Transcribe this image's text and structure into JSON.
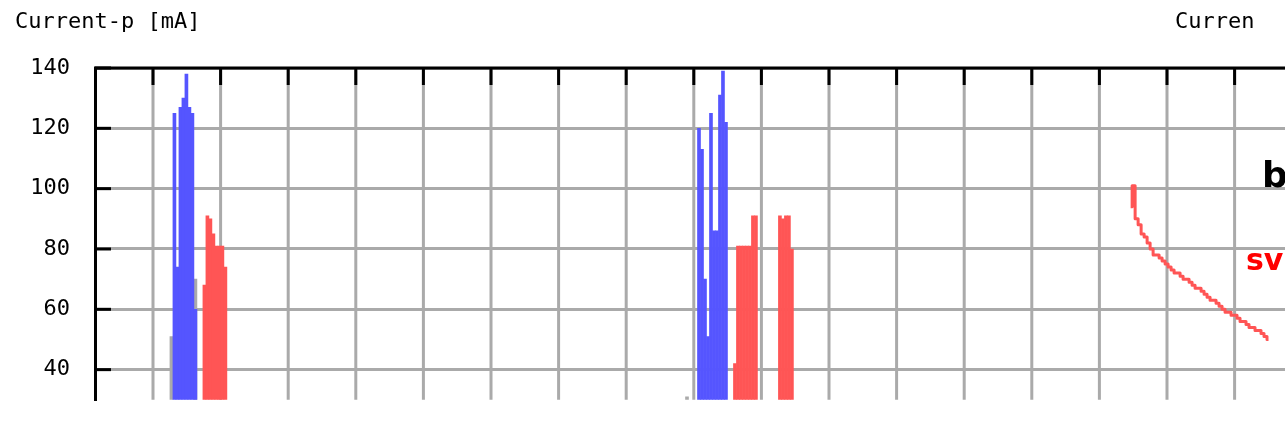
{
  "chart_data": {
    "type": "bar",
    "ylabel": "Current-p [mA]",
    "annotations": [
      "Curren",
      "b",
      "sv"
    ],
    "categories": [
      null,
      null,
      null,
      null,
      null,
      null,
      null,
      null,
      null,
      null,
      null,
      null,
      null,
      null,
      null,
      null,
      null,
      null,
      null,
      null,
      null,
      null,
      null,
      null,
      null,
      null,
      null,
      null,
      null,
      null,
      null,
      null,
      null,
      null,
      null,
      null,
      null,
      null,
      null,
      null,
      null,
      null,
      null,
      null,
      null,
      null,
      null,
      null,
      null,
      null,
      null,
      null,
      null,
      null,
      null,
      null,
      null,
      null,
      null,
      null,
      null,
      null,
      null,
      null,
      null,
      null,
      null,
      null,
      null,
      null,
      null,
      null,
      null,
      null,
      null,
      null,
      null,
      null,
      null,
      null,
      null,
      null,
      null,
      null,
      null,
      null,
      null,
      null,
      null,
      null,
      null,
      null,
      null,
      null,
      null,
      null,
      null,
      null,
      null,
      null,
      null,
      null,
      null,
      null,
      null,
      null,
      null,
      null,
      null,
      null,
      null,
      null,
      null,
      null,
      null,
      null,
      null,
      null,
      null,
      null,
      null,
      null,
      null,
      null,
      null,
      null,
      null,
      null,
      null,
      null,
      null,
      null,
      null,
      null,
      null,
      null,
      null,
      null,
      null,
      null,
      null,
      null,
      null,
      null,
      null,
      null,
      null,
      null,
      null,
      null,
      null,
      null,
      null,
      null,
      null,
      null,
      null,
      null,
      null,
      null,
      null,
      null,
      null,
      null,
      null,
      null,
      null,
      null,
      null,
      null,
      null,
      null,
      null,
      null,
      null,
      null,
      null,
      null,
      null,
      null,
      null,
      null,
      null,
      null,
      null,
      null,
      null,
      null,
      null,
      null,
      null,
      null,
      null,
      null,
      null,
      null,
      null,
      null,
      null,
      null,
      null,
      null,
      null,
      null,
      null,
      null,
      null,
      null,
      null,
      null,
      null,
      null,
      null,
      null,
      null,
      null,
      null,
      null,
      null,
      null,
      null,
      null,
      null,
      null,
      null,
      null,
      null,
      null,
      null,
      null,
      null,
      null,
      null,
      null,
      null,
      null,
      null,
      null,
      null,
      null,
      null,
      null,
      null,
      null,
      null,
      null,
      null,
      null,
      null,
      null,
      null,
      null,
      null,
      null,
      null,
      null,
      null,
      null,
      null,
      null,
      null,
      null,
      null,
      null,
      null,
      null,
      null,
      null,
      null,
      null,
      null,
      null,
      null,
      null,
      null,
      null,
      null,
      null,
      null,
      null,
      null,
      null,
      null,
      null,
      null,
      null,
      null,
      null,
      null,
      null,
      null,
      null,
      null,
      null,
      null,
      null,
      null,
      null,
      null,
      null,
      null,
      null,
      null,
      null,
      null,
      null,
      null,
      null,
      null,
      null,
      null,
      null,
      null,
      null,
      null,
      null,
      null,
      null,
      null,
      null,
      null,
      null,
      null,
      null,
      null,
      null,
      null,
      null,
      null,
      null,
      null,
      null,
      null,
      null,
      null,
      null,
      null,
      null,
      null,
      null,
      null,
      null,
      null,
      null,
      null,
      null,
      null,
      null,
      null,
      null,
      null,
      null,
      null,
      null,
      null,
      null,
      null,
      null,
      null,
      null,
      null,
      null,
      null,
      null,
      null,
      null,
      null,
      null,
      null,
      null,
      null,
      null,
      null,
      null,
      null,
      null,
      null,
      null,
      null,
      null,
      null,
      null,
      null,
      null,
      null,
      null,
      null,
      null,
      null,
      null,
      null,
      null,
      null,
      null,
      null,
      null,
      null
    ],
    "series": [
      {
        "color": "#aaaaaa",
        "values": [
          null,
          null,
          null,
          null,
          null,
          null,
          null,
          null,
          null,
          null,
          null,
          null,
          null,
          null,
          null,
          null,
          null,
          null,
          null,
          null,
          null,
          null,
          null,
          null,
          null,
          51,
          null,
          null,
          null,
          null,
          null,
          null,
          null,
          70,
          null,
          null,
          null,
          null,
          null,
          null,
          null,
          null,
          null,
          null,
          null,
          null,
          null,
          null,
          null,
          null,
          null,
          null,
          null,
          null,
          null,
          null,
          null,
          null,
          null,
          null,
          null,
          null,
          null,
          null,
          null,
          null,
          null,
          null,
          null,
          null,
          null,
          null,
          null,
          null,
          null,
          null,
          null,
          null,
          null,
          null,
          null,
          null,
          null,
          null,
          null,
          null,
          null,
          null,
          null,
          null,
          null,
          null,
          null,
          null,
          null,
          null,
          null,
          null,
          null,
          null,
          null,
          null,
          null,
          null,
          null,
          null,
          null,
          null,
          null,
          null,
          null,
          null,
          null,
          null,
          null,
          null,
          null,
          null,
          null,
          null,
          null,
          null,
          null,
          null,
          null,
          null,
          null,
          null,
          null,
          null,
          null,
          null,
          null,
          null,
          null,
          null,
          null,
          null,
          null,
          null,
          null,
          null,
          null,
          null,
          null,
          null,
          null,
          null,
          null,
          null,
          null,
          null,
          null,
          null,
          null,
          null,
          null,
          null,
          null,
          null,
          null,
          null,
          null,
          null,
          null,
          null,
          null,
          null,
          null,
          null,
          null,
          null,
          null,
          null,
          null,
          null,
          null,
          null,
          null,
          null,
          null,
          null,
          null,
          null,
          null,
          null,
          null,
          null,
          null,
          null,
          null,
          null,
          null,
          null,
          null,
          null,
          null,
          31,
          null,
          null,
          null,
          null,
          null,
          null,
          null,
          null,
          null,
          null,
          null,
          null,
          null,
          null,
          null,
          null,
          null,
          null,
          null,
          null,
          null,
          null,
          null,
          null,
          null,
          null,
          null,
          null,
          null,
          null,
          null,
          null,
          null,
          null,
          null,
          null,
          null,
          null,
          null,
          null,
          null,
          null,
          null,
          null,
          null,
          null,
          null,
          null,
          null,
          null,
          null,
          null,
          null,
          null,
          null,
          null,
          null,
          null,
          null,
          null,
          null,
          null,
          null,
          null,
          null,
          null,
          null,
          null,
          null,
          null,
          null,
          null,
          null,
          null,
          null,
          null,
          null,
          null,
          null,
          null,
          null,
          null,
          null,
          null,
          null,
          null,
          null,
          null,
          null,
          null,
          null,
          null,
          null,
          null,
          null,
          null,
          null,
          null,
          null,
          null,
          null,
          null,
          null,
          null,
          null,
          null,
          null,
          null,
          null,
          null,
          null,
          null,
          null,
          null,
          null,
          null,
          null,
          null,
          null,
          null,
          null,
          null,
          null,
          null,
          null,
          null,
          null,
          null,
          null,
          null,
          null,
          null,
          null,
          null,
          null,
          null,
          null,
          null,
          null,
          null,
          null,
          null,
          null,
          null,
          null,
          null,
          null,
          null,
          null,
          null,
          null,
          null,
          null,
          null,
          null,
          null,
          null,
          null,
          null,
          null,
          null,
          null,
          null,
          null,
          null,
          null,
          null,
          null,
          null,
          null,
          null,
          null,
          null,
          null,
          null,
          null,
          null,
          null,
          null,
          null,
          null,
          null,
          null,
          null,
          null,
          null,
          null,
          null,
          null,
          null,
          null,
          null,
          null,
          null,
          null,
          null,
          null,
          null,
          null
        ]
      },
      {
        "color": "#5555ff",
        "values": [
          null,
          null,
          null,
          null,
          null,
          null,
          null,
          null,
          null,
          null,
          null,
          null,
          null,
          null,
          null,
          null,
          null,
          null,
          null,
          null,
          null,
          null,
          null,
          null,
          null,
          null,
          125,
          74,
          127,
          130,
          138,
          127,
          125,
          60,
          null,
          null,
          null,
          null,
          null,
          null,
          null,
          null,
          null,
          null,
          null,
          null,
          null,
          null,
          null,
          null,
          null,
          null,
          null,
          null,
          null,
          null,
          null,
          null,
          null,
          null,
          null,
          null,
          null,
          null,
          null,
          null,
          null,
          null,
          null,
          null,
          null,
          null,
          null,
          null,
          null,
          null,
          null,
          null,
          null,
          null,
          null,
          null,
          null,
          null,
          null,
          null,
          null,
          null,
          null,
          null,
          null,
          null,
          null,
          null,
          null,
          null,
          null,
          null,
          null,
          null,
          null,
          null,
          null,
          null,
          null,
          null,
          null,
          null,
          null,
          null,
          null,
          null,
          null,
          null,
          null,
          null,
          null,
          null,
          null,
          null,
          null,
          null,
          null,
          null,
          null,
          null,
          null,
          null,
          null,
          null,
          null,
          null,
          null,
          null,
          null,
          null,
          null,
          null,
          null,
          null,
          null,
          null,
          null,
          null,
          null,
          null,
          null,
          null,
          null,
          null,
          null,
          null,
          null,
          null,
          null,
          null,
          null,
          null,
          null,
          null,
          null,
          null,
          null,
          null,
          null,
          null,
          null,
          null,
          null,
          null,
          null,
          null,
          null,
          null,
          null,
          null,
          null,
          null,
          null,
          null,
          null,
          null,
          null,
          null,
          null,
          null,
          null,
          null,
          null,
          null,
          null,
          null,
          null,
          null,
          null,
          null,
          null,
          null,
          null,
          null,
          null,
          120,
          113,
          70,
          51,
          125,
          86,
          86,
          131,
          139,
          122,
          null,
          null,
          null,
          null,
          null,
          null,
          null,
          null,
          null,
          null,
          null,
          null,
          null,
          null,
          null,
          null,
          null,
          null,
          null,
          null,
          null,
          null,
          null,
          null,
          null,
          null,
          null,
          null,
          null,
          null,
          null,
          null,
          null,
          null,
          null,
          null,
          null,
          null,
          null,
          null,
          null,
          null,
          null,
          null,
          null,
          null,
          null,
          null,
          null,
          null,
          null,
          null,
          null,
          null,
          null,
          null,
          null,
          null,
          null,
          null,
          null,
          null,
          null,
          null,
          null,
          null,
          null,
          null,
          null,
          null,
          null,
          null,
          null,
          null,
          null,
          null,
          null,
          null,
          null,
          null,
          null,
          null,
          null,
          null,
          null,
          null,
          null,
          null,
          null,
          null,
          null,
          null,
          null,
          null,
          null,
          null,
          null,
          null,
          null,
          null,
          null,
          null,
          null,
          null,
          null,
          null,
          null,
          null,
          null,
          null,
          null,
          null,
          null,
          null,
          null,
          null,
          null,
          null,
          null,
          null,
          null,
          null,
          null,
          null,
          null,
          null,
          null,
          null,
          null,
          null,
          null,
          null,
          null,
          null,
          null,
          null,
          null,
          null,
          null,
          null,
          null,
          null,
          null,
          null,
          null,
          null,
          null,
          null,
          null,
          null,
          null,
          null,
          null,
          null,
          null,
          null,
          null,
          null,
          null,
          null,
          null,
          null,
          null,
          null,
          null,
          null,
          null,
          null,
          null,
          null,
          null,
          null,
          null,
          null,
          null,
          null,
          null,
          null,
          null,
          null,
          null,
          null,
          null,
          null,
          null,
          null
        ]
      },
      {
        "color": "#ff5555",
        "values": [
          null,
          null,
          null,
          null,
          null,
          null,
          null,
          null,
          null,
          null,
          null,
          null,
          null,
          null,
          null,
          null,
          null,
          null,
          null,
          null,
          null,
          null,
          null,
          null,
          null,
          null,
          null,
          null,
          null,
          null,
          null,
          null,
          null,
          null,
          null,
          null,
          68,
          91,
          90,
          85,
          81,
          81,
          81,
          74,
          null,
          null,
          null,
          null,
          null,
          null,
          null,
          null,
          null,
          null,
          null,
          null,
          null,
          null,
          null,
          null,
          null,
          null,
          null,
          null,
          null,
          null,
          null,
          null,
          null,
          null,
          null,
          null,
          null,
          null,
          null,
          null,
          null,
          null,
          null,
          null,
          null,
          null,
          null,
          null,
          null,
          null,
          null,
          null,
          null,
          null,
          null,
          null,
          null,
          null,
          null,
          null,
          null,
          null,
          null,
          null,
          null,
          null,
          null,
          null,
          null,
          null,
          null,
          null,
          null,
          null,
          null,
          null,
          null,
          null,
          null,
          null,
          null,
          null,
          null,
          null,
          null,
          null,
          null,
          null,
          null,
          null,
          null,
          null,
          null,
          null,
          null,
          null,
          null,
          null,
          null,
          null,
          null,
          null,
          null,
          null,
          null,
          null,
          null,
          null,
          null,
          null,
          null,
          null,
          null,
          null,
          null,
          null,
          null,
          null,
          null,
          null,
          null,
          null,
          null,
          null,
          null,
          null,
          null,
          null,
          null,
          null,
          null,
          null,
          null,
          null,
          null,
          null,
          null,
          null,
          null,
          null,
          null,
          null,
          null,
          null,
          null,
          null,
          null,
          null,
          null,
          null,
          null,
          null,
          null,
          null,
          null,
          null,
          null,
          null,
          null,
          null,
          null,
          null,
          null,
          null,
          null,
          null,
          null,
          null,
          null,
          null,
          null,
          null,
          null,
          null,
          null,
          null,
          null,
          42,
          81,
          81,
          81,
          81,
          81,
          91,
          91,
          null,
          null,
          null,
          null,
          null,
          null,
          null,
          91,
          90,
          91,
          91,
          80,
          null,
          null,
          null,
          null,
          null,
          null,
          null,
          null,
          null,
          null,
          null,
          null,
          null,
          null,
          null,
          null,
          null,
          null,
          null,
          null,
          null,
          null,
          null,
          null,
          null,
          null,
          null,
          null,
          null,
          null,
          null,
          null,
          null,
          null,
          null,
          null,
          null,
          null,
          null,
          null,
          null,
          null,
          null,
          null,
          null,
          null,
          null,
          null,
          null,
          null,
          null,
          null,
          null,
          null,
          null,
          null,
          null,
          null,
          null,
          null,
          null,
          null,
          null,
          null,
          null,
          null,
          null,
          null,
          null,
          null,
          null,
          null,
          null,
          null,
          null,
          null,
          null,
          null,
          null,
          null,
          null,
          null,
          null,
          null,
          null,
          null,
          null,
          null,
          null,
          null,
          null,
          null,
          null,
          null,
          null,
          null,
          null,
          null,
          null,
          null,
          null,
          null,
          null,
          null,
          null,
          null,
          null,
          null,
          null,
          null,
          null,
          null,
          null,
          null,
          null,
          null,
          null,
          null,
          null,
          null,
          null,
          null,
          null,
          null,
          null,
          null,
          null,
          null,
          null,
          null,
          null,
          null,
          null,
          null,
          null,
          null,
          null,
          null,
          null,
          null,
          null,
          null,
          null,
          null,
          null,
          null,
          null,
          null,
          null,
          null,
          null,
          null,
          null,
          null,
          null,
          null,
          null,
          null,
          null,
          null,
          null,
          null,
          null,
          null
        ]
      },
      {
        "type": "step",
        "color": "#ff5555",
        "values": [
          null,
          null,
          null,
          null,
          null,
          null,
          null,
          null,
          null,
          null,
          null,
          null,
          null,
          null,
          null,
          null,
          null,
          null,
          null,
          null,
          null,
          null,
          null,
          null,
          null,
          null,
          null,
          null,
          null,
          null,
          null,
          null,
          null,
          null,
          null,
          null,
          null,
          null,
          null,
          null,
          null,
          null,
          null,
          null,
          null,
          null,
          null,
          null,
          null,
          null,
          null,
          null,
          null,
          null,
          null,
          null,
          null,
          null,
          null,
          null,
          null,
          null,
          null,
          null,
          null,
          null,
          null,
          null,
          null,
          null,
          null,
          null,
          null,
          null,
          null,
          null,
          null,
          null,
          null,
          null,
          null,
          null,
          null,
          null,
          null,
          null,
          null,
          null,
          null,
          null,
          null,
          null,
          null,
          null,
          null,
          null,
          null,
          null,
          null,
          null,
          null,
          null,
          null,
          null,
          null,
          null,
          null,
          null,
          null,
          null,
          null,
          null,
          null,
          null,
          null,
          null,
          null,
          null,
          null,
          null,
          null,
          null,
          null,
          null,
          null,
          null,
          null,
          null,
          null,
          null,
          null,
          null,
          null,
          null,
          null,
          null,
          null,
          null,
          null,
          null,
          null,
          null,
          null,
          null,
          null,
          null,
          null,
          null,
          null,
          null,
          null,
          null,
          null,
          null,
          null,
          null,
          null,
          null,
          null,
          null,
          null,
          null,
          null,
          null,
          null,
          null,
          null,
          null,
          null,
          null,
          null,
          null,
          null,
          null,
          null,
          null,
          null,
          null,
          null,
          null,
          null,
          null,
          null,
          null,
          null,
          null,
          null,
          null,
          null,
          null,
          null,
          null,
          null,
          null,
          null,
          null,
          null,
          null,
          null,
          null,
          null,
          null,
          null,
          null,
          null,
          null,
          null,
          null,
          null,
          null,
          null,
          null,
          null,
          null,
          null,
          null,
          null,
          null,
          null,
          null,
          null,
          null,
          null,
          null,
          null,
          null,
          null,
          null,
          null,
          null,
          null,
          null,
          null,
          null,
          null,
          null,
          null,
          null,
          null,
          null,
          null,
          null,
          null,
          null,
          null,
          null,
          null,
          null,
          null,
          null,
          null,
          null,
          null,
          null,
          null,
          null,
          null,
          null,
          null,
          null,
          null,
          null,
          null,
          null,
          null,
          null,
          null,
          null,
          null,
          null,
          null,
          null,
          null,
          null,
          null,
          null,
          null,
          null,
          null,
          null,
          null,
          null,
          null,
          null,
          null,
          null,
          null,
          null,
          null,
          null,
          null,
          null,
          null,
          null,
          null,
          null,
          null,
          null,
          null,
          null,
          null,
          null,
          null,
          null,
          null,
          null,
          null,
          null,
          null,
          null,
          null,
          null,
          null,
          null,
          null,
          null,
          null,
          null,
          null,
          null,
          null,
          null,
          null,
          null,
          null,
          null,
          null,
          null,
          null,
          null,
          null,
          null,
          null,
          null,
          null,
          null,
          null,
          null,
          null,
          null,
          null,
          null,
          null,
          null,
          null,
          94,
          101,
          90,
          88,
          85,
          84,
          82,
          80,
          78,
          78,
          77,
          76,
          75,
          74,
          73,
          72,
          72,
          71,
          70,
          70,
          69,
          68,
          67,
          67,
          66,
          65,
          64,
          63,
          63,
          62,
          61,
          60,
          59,
          59,
          58,
          58,
          57,
          56,
          56,
          55,
          54,
          54,
          53,
          53,
          52,
          51,
          50,
          null,
          null,
          null,
          null,
          null
        ]
      }
    ],
    "ylim": [
      30,
      140
    ],
    "yticks": [
      40,
      60,
      80,
      100,
      120,
      140
    ],
    "grid": true,
    "tick_labels": "y"
  }
}
